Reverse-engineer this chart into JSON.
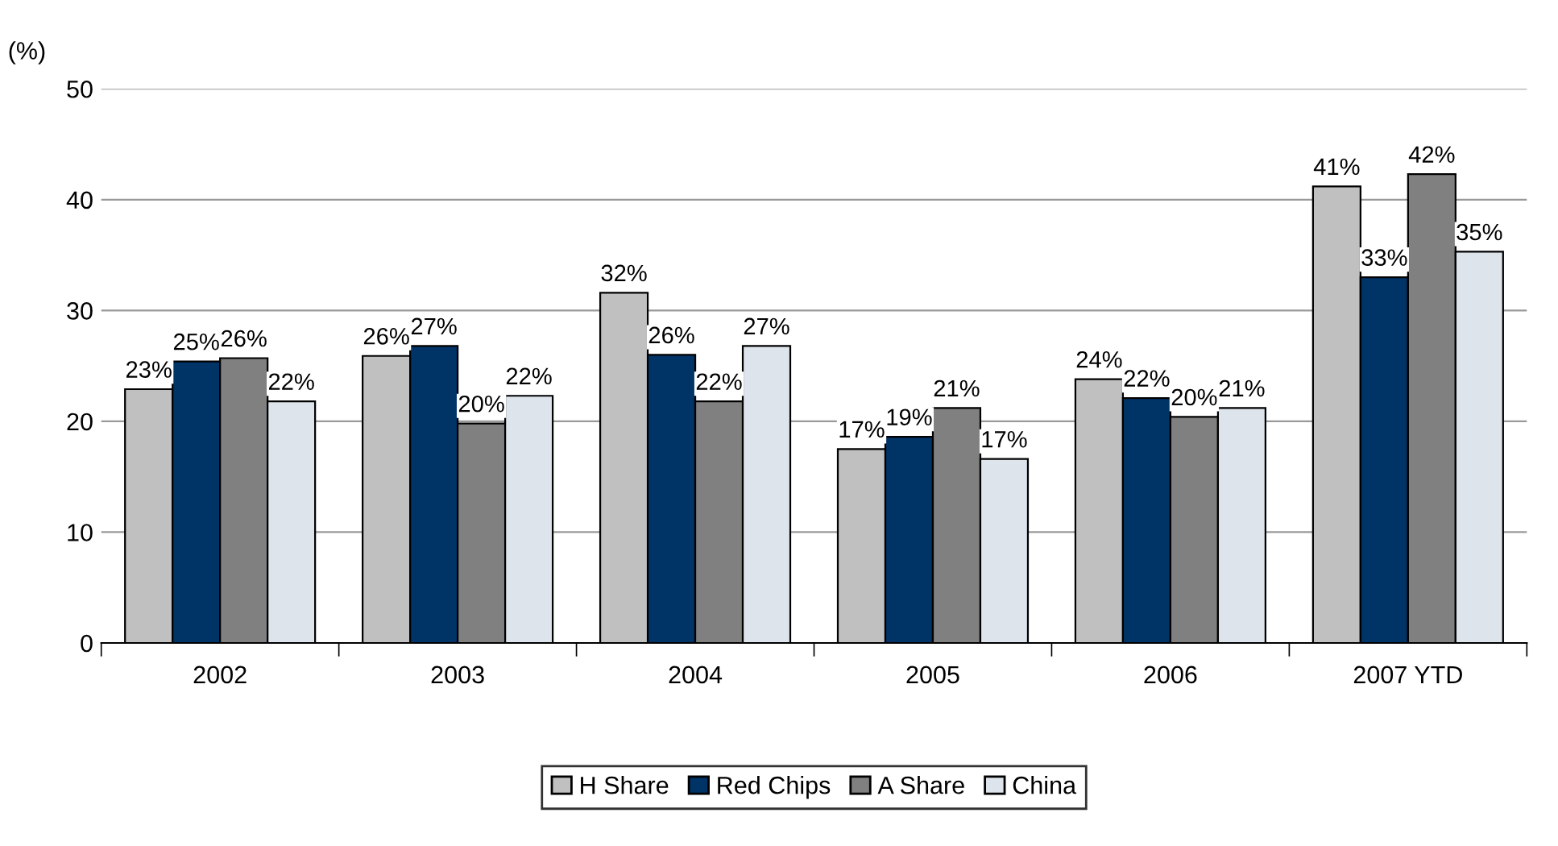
{
  "chart_data": {
    "type": "bar",
    "ylabel": "(%)",
    "categories": [
      "2002",
      "2003",
      "2004",
      "2005",
      "2006",
      "2007 YTD"
    ],
    "series": [
      {
        "name": "H Share",
        "color": "#c0c0c0",
        "values": [
          22.9,
          25.9,
          31.6,
          17.5,
          23.8,
          41.2
        ],
        "value_labels": [
          "23%",
          "26%",
          "32%",
          "17%",
          "24%",
          "41%"
        ]
      },
      {
        "name": "Red Chips",
        "color": "#003366",
        "values": [
          25.4,
          26.8,
          26.0,
          18.6,
          22.1,
          33.0
        ],
        "value_labels": [
          "25%",
          "27%",
          "26%",
          "19%",
          "22%",
          "33%"
        ]
      },
      {
        "name": "A Share",
        "color": "#808080",
        "values": [
          25.7,
          19.8,
          21.8,
          21.2,
          20.4,
          42.3
        ],
        "value_labels": [
          "26%",
          "20%",
          "22%",
          "21%",
          "20%",
          "42%"
        ]
      },
      {
        "name": "China",
        "color": "#dde4ec",
        "values": [
          21.8,
          22.3,
          26.8,
          16.6,
          21.2,
          35.3
        ],
        "value_labels": [
          "22%",
          "22%",
          "27%",
          "17%",
          "21%",
          "35%"
        ]
      }
    ],
    "ylim": [
      0,
      50
    ],
    "yticks": [
      0,
      10,
      20,
      30,
      40,
      50
    ],
    "grid": "y",
    "legend": "bottom"
  }
}
